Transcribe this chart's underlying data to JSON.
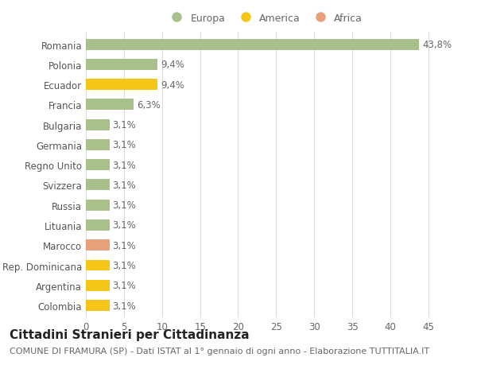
{
  "title": "Cittadini Stranieri per Cittadinanza",
  "subtitle": "COMUNE DI FRAMURA (SP) - Dati ISTAT al 1° gennaio di ogni anno - Elaborazione TUTTITALIA.IT",
  "categories": [
    "Romania",
    "Polonia",
    "Ecuador",
    "Francia",
    "Bulgaria",
    "Germania",
    "Regno Unito",
    "Svizzera",
    "Russia",
    "Lituania",
    "Marocco",
    "Rep. Dominicana",
    "Argentina",
    "Colombia"
  ],
  "values": [
    43.8,
    9.4,
    9.4,
    6.3,
    3.1,
    3.1,
    3.1,
    3.1,
    3.1,
    3.1,
    3.1,
    3.1,
    3.1,
    3.1
  ],
  "labels": [
    "43,8%",
    "9,4%",
    "9,4%",
    "6,3%",
    "3,1%",
    "3,1%",
    "3,1%",
    "3,1%",
    "3,1%",
    "3,1%",
    "3,1%",
    "3,1%",
    "3,1%",
    "3,1%"
  ],
  "colors": [
    "#a8c08a",
    "#a8c08a",
    "#f5c518",
    "#a8c08a",
    "#a8c08a",
    "#a8c08a",
    "#a8c08a",
    "#a8c08a",
    "#a8c08a",
    "#a8c08a",
    "#e8a07a",
    "#f5c518",
    "#f5c518",
    "#f5c518"
  ],
  "legend_labels": [
    "Europa",
    "America",
    "Africa"
  ],
  "legend_colors": [
    "#a8c08a",
    "#f5c518",
    "#e8a07a"
  ],
  "xlim": [
    0,
    47
  ],
  "xticks": [
    0,
    5,
    10,
    15,
    20,
    25,
    30,
    35,
    40,
    45
  ],
  "background_color": "#ffffff",
  "grid_color": "#dddddd",
  "bar_height": 0.55,
  "label_fontsize": 8.5,
  "tick_fontsize": 8.5,
  "title_fontsize": 11,
  "subtitle_fontsize": 8
}
